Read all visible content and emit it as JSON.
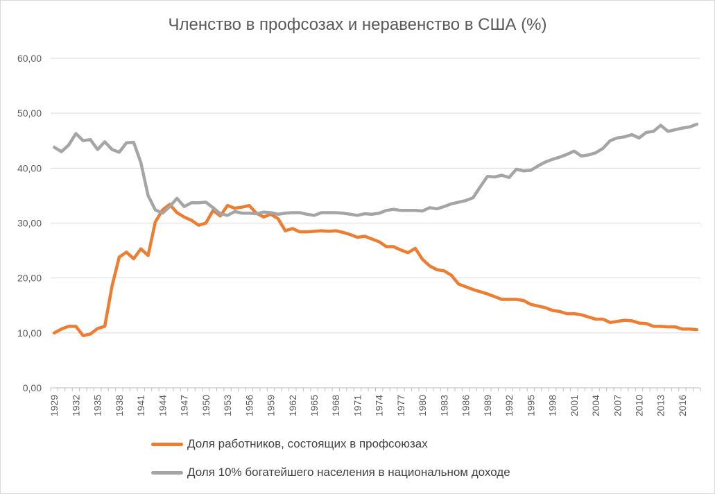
{
  "chart_data": {
    "type": "line",
    "title": "Членство в профсозах и неравенство в США (%)",
    "xlabel": "",
    "ylabel": "",
    "ylim": [
      0,
      60
    ],
    "yticks": [
      "0,00",
      "10,00",
      "20,00",
      "30,00",
      "40,00",
      "50,00",
      "60,00"
    ],
    "xtick_labels": [
      "1929",
      "1932",
      "1935",
      "1938",
      "1941",
      "1944",
      "1947",
      "1950",
      "1953",
      "1956",
      "1959",
      "1962",
      "1965",
      "1968",
      "1971",
      "1974",
      "1977",
      "1980",
      "1983",
      "1986",
      "1989",
      "1992",
      "1995",
      "1998",
      "2001",
      "2004",
      "2007",
      "2010",
      "2013",
      "2016"
    ],
    "grid": "horizontal",
    "legend_position": "bottom",
    "x": [
      1929,
      1930,
      1931,
      1932,
      1933,
      1934,
      1935,
      1936,
      1937,
      1938,
      1939,
      1940,
      1941,
      1942,
      1943,
      1944,
      1945,
      1946,
      1947,
      1948,
      1949,
      1950,
      1951,
      1952,
      1953,
      1954,
      1955,
      1956,
      1957,
      1958,
      1959,
      1960,
      1961,
      1962,
      1963,
      1964,
      1965,
      1966,
      1967,
      1968,
      1969,
      1970,
      1971,
      1972,
      1973,
      1974,
      1975,
      1976,
      1977,
      1978,
      1979,
      1980,
      1981,
      1982,
      1983,
      1984,
      1985,
      1986,
      1987,
      1988,
      1989,
      1990,
      1991,
      1992,
      1993,
      1994,
      1995,
      1996,
      1997,
      1998,
      1999,
      2000,
      2001,
      2002,
      2003,
      2004,
      2005,
      2006,
      2007,
      2008,
      2009,
      2010,
      2011,
      2012,
      2013,
      2014,
      2015,
      2016,
      2017,
      2018
    ],
    "series": [
      {
        "name": "Доля работников, состоящих в профсоюзах",
        "color": "#ED7D31",
        "values": [
          10.0,
          10.7,
          11.2,
          11.2,
          9.5,
          9.8,
          10.8,
          11.2,
          18.5,
          23.8,
          24.7,
          23.5,
          25.3,
          24.1,
          30.2,
          32.4,
          33.4,
          31.9,
          31.1,
          30.5,
          29.6,
          30.0,
          32.3,
          31.3,
          33.2,
          32.7,
          32.9,
          33.2,
          31.8,
          31.1,
          31.6,
          30.8,
          28.6,
          29.0,
          28.4,
          28.4,
          28.5,
          28.6,
          28.5,
          28.6,
          28.3,
          27.9,
          27.4,
          27.6,
          27.1,
          26.6,
          25.7,
          25.7,
          25.1,
          24.6,
          25.4,
          23.4,
          22.2,
          21.5,
          21.3,
          20.5,
          18.9,
          18.4,
          17.9,
          17.5,
          17.1,
          16.6,
          16.1,
          16.1,
          16.1,
          15.9,
          15.2,
          14.9,
          14.6,
          14.1,
          13.9,
          13.5,
          13.5,
          13.3,
          12.9,
          12.5,
          12.5,
          11.9,
          12.1,
          12.3,
          12.2,
          11.8,
          11.7,
          11.2,
          11.2,
          11.1,
          11.1,
          10.7,
          10.7,
          10.6
        ]
      },
      {
        "name": "Доля 10% богатейшего населения в национальном доходе",
        "color": "#A5A5A5",
        "values": [
          43.8,
          43.0,
          44.2,
          46.3,
          45.0,
          45.2,
          43.4,
          44.8,
          43.4,
          42.9,
          44.6,
          44.7,
          41.0,
          35.0,
          32.4,
          31.8,
          33.0,
          34.5,
          33.0,
          33.7,
          33.7,
          33.8,
          32.8,
          31.7,
          31.4,
          32.1,
          31.8,
          31.8,
          31.7,
          32.0,
          31.9,
          31.6,
          31.8,
          31.9,
          31.9,
          31.6,
          31.4,
          31.9,
          31.9,
          31.9,
          31.8,
          31.6,
          31.4,
          31.7,
          31.6,
          31.8,
          32.3,
          32.5,
          32.3,
          32.3,
          32.3,
          32.2,
          32.8,
          32.6,
          33.0,
          33.5,
          33.8,
          34.1,
          34.6,
          36.6,
          38.5,
          38.4,
          38.7,
          38.3,
          39.8,
          39.5,
          39.6,
          40.4,
          41.1,
          41.6,
          42.0,
          42.5,
          43.1,
          42.2,
          42.4,
          42.8,
          43.6,
          45.0,
          45.5,
          45.7,
          46.1,
          45.5,
          46.5,
          46.7,
          47.8,
          46.7,
          47.0,
          47.3,
          47.5,
          48.0
        ]
      }
    ]
  }
}
